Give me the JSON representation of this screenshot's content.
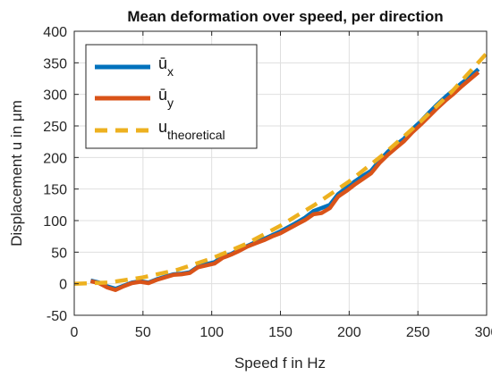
{
  "chart_data": {
    "type": "line",
    "title": "Mean deformation over speed, per direction",
    "xlabel": "Speed f in Hz",
    "ylabel": "Displacement u in μm",
    "xlim": [
      0,
      300
    ],
    "ylim": [
      -50,
      400
    ],
    "xticks": [
      0,
      50,
      100,
      150,
      200,
      250,
      300
    ],
    "yticks": [
      -50,
      0,
      50,
      100,
      150,
      200,
      250,
      300,
      350,
      400
    ],
    "grid": true,
    "legend_position": "top-left",
    "series": [
      {
        "name": "ū",
        "subscript": "x",
        "color": "#0072BD",
        "style": "solid",
        "x": [
          12,
          18,
          24,
          30,
          36,
          42,
          48,
          54,
          60,
          66,
          72,
          78,
          84,
          90,
          96,
          102,
          108,
          114,
          120,
          126,
          132,
          138,
          144,
          150,
          156,
          162,
          168,
          174,
          180,
          186,
          192,
          198,
          204,
          210,
          216,
          222,
          228,
          234,
          240,
          246,
          252,
          258,
          264,
          270,
          276,
          282,
          288,
          294
        ],
        "y": [
          5,
          2,
          -4,
          -8,
          -3,
          2,
          4,
          2,
          7,
          11,
          15,
          16,
          18,
          27,
          31,
          34,
          43,
          47,
          54,
          60,
          66,
          71,
          77,
          83,
          90,
          97,
          105,
          115,
          120,
          125,
          142,
          152,
          162,
          171,
          179,
          195,
          209,
          220,
          230,
          245,
          257,
          271,
          284,
          296,
          307,
          318,
          328,
          340
        ]
      },
      {
        "name": "ū",
        "subscript": "y",
        "color": "#D95319",
        "style": "solid",
        "x": [
          12,
          18,
          24,
          30,
          36,
          42,
          48,
          54,
          60,
          66,
          72,
          78,
          84,
          90,
          96,
          102,
          108,
          114,
          120,
          126,
          132,
          138,
          144,
          150,
          156,
          162,
          168,
          174,
          180,
          186,
          192,
          198,
          204,
          210,
          216,
          222,
          228,
          234,
          240,
          246,
          252,
          258,
          264,
          270,
          276,
          282,
          288,
          294
        ],
        "y": [
          4,
          1,
          -6,
          -10,
          -4,
          1,
          3,
          1,
          6,
          10,
          14,
          15,
          17,
          26,
          29,
          32,
          41,
          46,
          52,
          59,
          64,
          69,
          75,
          80,
          87,
          94,
          101,
          110,
          112,
          120,
          138,
          147,
          157,
          166,
          175,
          191,
          204,
          215,
          226,
          240,
          252,
          265,
          278,
          290,
          301,
          313,
          324,
          335
        ]
      },
      {
        "name": "u",
        "subscript": "theoretical",
        "color": "#EDB120",
        "style": "dashed",
        "x": [
          0,
          25,
          50,
          75,
          100,
          125,
          150,
          175,
          200,
          225,
          250,
          275,
          300
        ],
        "y": [
          0,
          2,
          10,
          22,
          40,
          63,
          92,
          125,
          162,
          205,
          253,
          305,
          365
        ]
      }
    ]
  }
}
